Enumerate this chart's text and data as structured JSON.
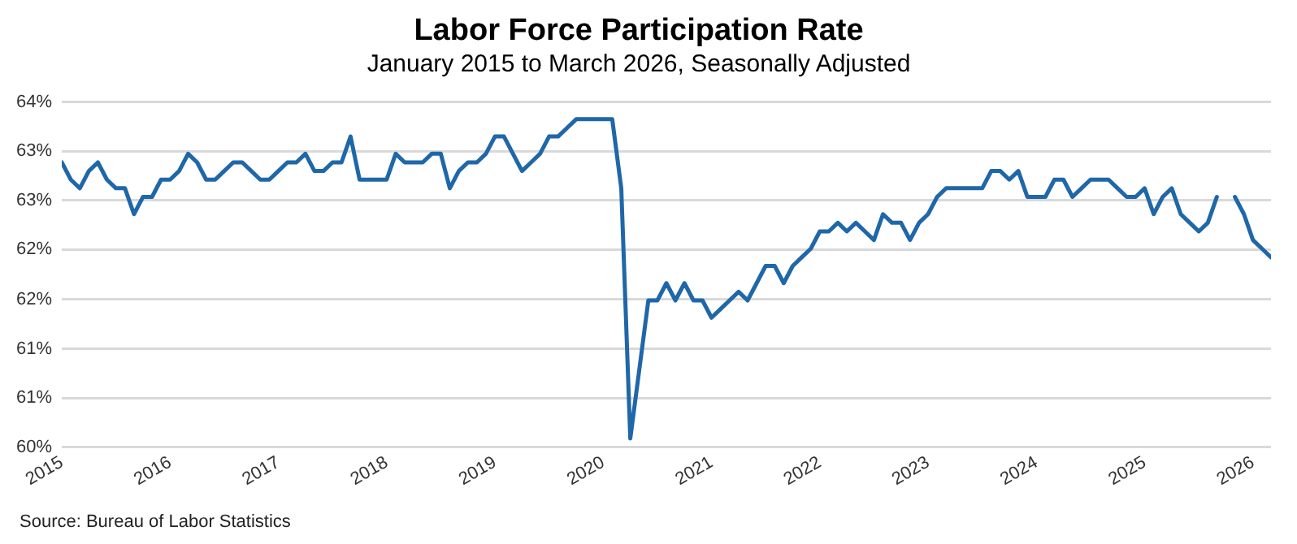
{
  "chart_data": {
    "type": "line",
    "title": "Labor Force Participation Rate",
    "subtitle": "January 2015 to March 2026, Seasonally Adjusted",
    "annotations": [
      "Source: Bureau of Labor Statistics"
    ],
    "x": [
      "2015-01",
      "2015-02",
      "2015-03",
      "2015-04",
      "2015-05",
      "2015-06",
      "2015-07",
      "2015-08",
      "2015-09",
      "2015-10",
      "2015-11",
      "2015-12",
      "2016-01",
      "2016-02",
      "2016-03",
      "2016-04",
      "2016-05",
      "2016-06",
      "2016-07",
      "2016-08",
      "2016-09",
      "2016-10",
      "2016-11",
      "2016-12",
      "2017-01",
      "2017-02",
      "2017-03",
      "2017-04",
      "2017-05",
      "2017-06",
      "2017-07",
      "2017-08",
      "2017-09",
      "2017-10",
      "2017-11",
      "2017-12",
      "2018-01",
      "2018-02",
      "2018-03",
      "2018-04",
      "2018-05",
      "2018-06",
      "2018-07",
      "2018-08",
      "2018-09",
      "2018-10",
      "2018-11",
      "2018-12",
      "2019-01",
      "2019-02",
      "2019-03",
      "2019-04",
      "2019-05",
      "2019-06",
      "2019-07",
      "2019-08",
      "2019-09",
      "2019-10",
      "2019-11",
      "2019-12",
      "2020-01",
      "2020-02",
      "2020-03",
      "2020-04",
      "2020-05",
      "2020-06",
      "2020-07",
      "2020-08",
      "2020-09",
      "2020-10",
      "2020-11",
      "2020-12",
      "2021-01",
      "2021-02",
      "2021-03",
      "2021-04",
      "2021-05",
      "2021-06",
      "2021-07",
      "2021-08",
      "2021-09",
      "2021-10",
      "2021-11",
      "2021-12",
      "2022-01",
      "2022-02",
      "2022-03",
      "2022-04",
      "2022-05",
      "2022-06",
      "2022-07",
      "2022-08",
      "2022-09",
      "2022-10",
      "2022-11",
      "2022-12",
      "2023-01",
      "2023-02",
      "2023-03",
      "2023-04",
      "2023-05",
      "2023-06",
      "2023-07",
      "2023-08",
      "2023-09",
      "2023-10",
      "2023-11",
      "2023-12",
      "2024-01",
      "2024-02",
      "2024-03",
      "2024-04",
      "2024-05",
      "2024-06",
      "2024-07",
      "2024-08",
      "2024-09",
      "2024-10",
      "2024-11",
      "2024-12",
      "2025-01",
      "2025-02",
      "2025-03",
      "2025-04",
      "2025-05",
      "2025-06",
      "2025-07",
      "2025-08",
      "2025-09",
      "2025-10",
      "2025-11",
      "2025-12",
      "2026-01",
      "2026-02",
      "2026-03"
    ],
    "series": [
      {
        "color": "#1f67a8",
        "values": [
          63.3,
          63.1,
          63.0,
          63.2,
          63.3,
          63.1,
          63.0,
          63.0,
          62.7,
          62.9,
          62.9,
          63.1,
          63.1,
          63.2,
          63.4,
          63.3,
          63.1,
          63.1,
          63.2,
          63.3,
          63.3,
          63.2,
          63.1,
          63.1,
          63.2,
          63.3,
          63.3,
          63.4,
          63.2,
          63.2,
          63.3,
          63.3,
          63.6,
          63.1,
          63.1,
          63.1,
          63.1,
          63.4,
          63.3,
          63.3,
          63.3,
          63.4,
          63.4,
          63.0,
          63.2,
          63.3,
          63.3,
          63.4,
          63.6,
          63.6,
          63.4,
          63.2,
          63.3,
          63.4,
          63.6,
          63.6,
          63.7,
          63.8,
          63.8,
          63.8,
          63.8,
          63.8,
          63.0,
          60.1,
          60.9,
          61.7,
          61.7,
          61.9,
          61.7,
          61.9,
          61.7,
          61.7,
          61.5,
          61.6,
          61.7,
          61.8,
          61.7,
          61.9,
          62.1,
          62.1,
          61.9,
          62.1,
          62.2,
          62.3,
          62.5,
          62.5,
          62.6,
          62.5,
          62.6,
          62.5,
          62.4,
          62.7,
          62.6,
          62.6,
          62.4,
          62.6,
          62.7,
          62.9,
          63.0,
          63.0,
          63.0,
          63.0,
          63.0,
          63.2,
          63.2,
          63.1,
          63.2,
          62.9,
          62.9,
          62.9,
          63.1,
          63.1,
          62.9,
          63.0,
          63.1,
          63.1,
          63.1,
          63.0,
          62.9,
          62.9,
          63.0,
          62.7,
          62.9,
          63.0,
          62.7,
          62.6,
          62.5,
          62.6,
          62.9,
          null,
          62.9,
          62.7,
          62.4,
          62.3,
          62.2
        ]
      }
    ],
    "xlim": [
      "2015-01",
      "2026-03"
    ],
    "xticks": [
      "2015",
      "2016",
      "2017",
      "2018",
      "2019",
      "2020",
      "2021",
      "2022",
      "2023",
      "2024",
      "2025",
      "2026"
    ],
    "ylim": [
      60,
      64
    ],
    "yticks": [
      {
        "value": 60,
        "label": "60%"
      },
      {
        "value": 60.57,
        "label": "61%"
      },
      {
        "value": 61.14,
        "label": "61%"
      },
      {
        "value": 61.71,
        "label": "62%"
      },
      {
        "value": 62.29,
        "label": "62%"
      },
      {
        "value": 62.86,
        "label": "63%"
      },
      {
        "value": 63.43,
        "label": "63%"
      },
      {
        "value": 64,
        "label": "64%"
      }
    ],
    "grid": "y",
    "legend": false,
    "marker": "none",
    "line_style": "solid"
  }
}
